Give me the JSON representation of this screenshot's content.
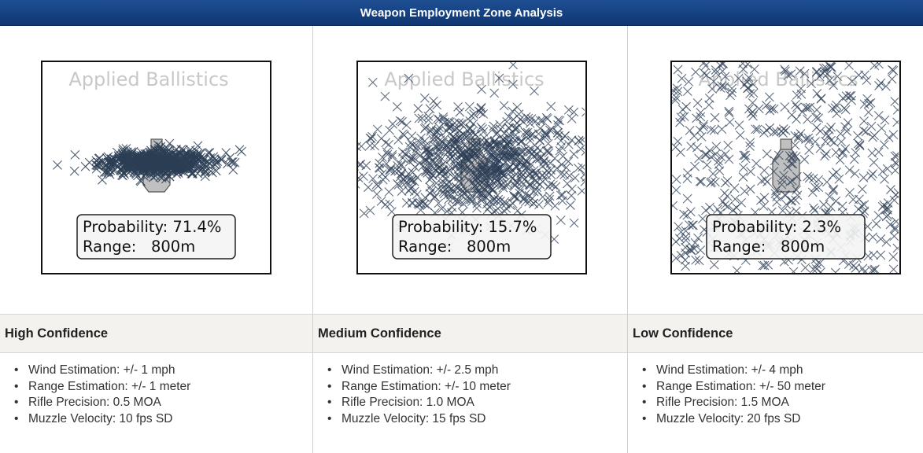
{
  "header": {
    "title": "Weapon Employment Zone Analysis"
  },
  "colors": {
    "header_bg": "#0e3672",
    "hit_marker": "#2c3e55",
    "target_fill": "#c0c0c0"
  },
  "chart_data": [
    {
      "type": "scatter",
      "title": "",
      "watermark": "Applied Ballistics",
      "marker": "x",
      "target": "silhouette",
      "annotation": {
        "probability_label": "Probability: 71.4%",
        "range_label": "Range:   800m"
      },
      "probability_percent": 71.4,
      "range_m": 800,
      "dispersion_spread": "tight"
    },
    {
      "type": "scatter",
      "title": "",
      "watermark": "Applied Ballistics",
      "marker": "x",
      "target": "silhouette",
      "annotation": {
        "probability_label": "Probability: 15.7%",
        "range_label": "Range:   800m"
      },
      "probability_percent": 15.7,
      "range_m": 800,
      "dispersion_spread": "wide"
    },
    {
      "type": "scatter",
      "title": "",
      "watermark": "Applied Ballistics",
      "marker": "x",
      "target": "silhouette",
      "annotation": {
        "probability_label": "Probability: 2.3%",
        "range_label": "Range:   800m"
      },
      "probability_percent": 2.3,
      "range_m": 800,
      "dispersion_spread": "very wide"
    }
  ],
  "columns": [
    {
      "confidence": "High Confidence",
      "params": [
        "Wind Estimation: +/- 1 mph",
        "Range Estimation: +/- 1 meter",
        "Rifle Precision: 0.5 MOA",
        "Muzzle Velocity: 10 fps SD"
      ]
    },
    {
      "confidence": "Medium Confidence",
      "params": [
        "Wind Estimation: +/- 2.5 mph",
        "Range Estimation: +/- 10 meter",
        "Rifle Precision: 1.0 MOA",
        "Muzzle Velocity: 15 fps SD"
      ]
    },
    {
      "confidence": "Low Confidence",
      "params": [
        "Wind Estimation: +/- 4 mph",
        "Range Estimation: +/- 50 meter",
        "Rifle Precision: 1.5 MOA",
        "Muzzle Velocity: 20 fps SD"
      ]
    }
  ]
}
